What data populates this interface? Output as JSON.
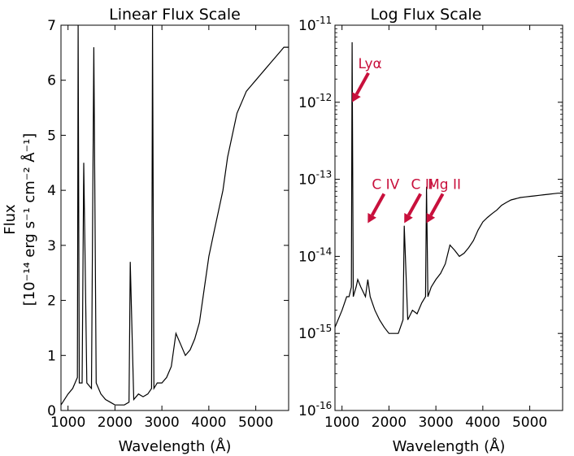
{
  "colors": {
    "line": "#000000",
    "annotation": "#c8103c",
    "background": "#ffffff"
  },
  "ylabel": {
    "line1": "Flux",
    "line2": "[10⁻¹⁴ erg s⁻¹ cm⁻² Å⁻¹]"
  },
  "chart_data": [
    {
      "type": "line",
      "title": "Linear Flux Scale",
      "xlabel": "Wavelength (Å)",
      "ylabel": "Flux [10^-14 erg s^-1 cm^-2 Å^-1]",
      "xlim": [
        850,
        5700
      ],
      "ylim": [
        0,
        7
      ],
      "yscale": "linear",
      "xticks": [
        1000,
        2000,
        3000,
        4000,
        5000
      ],
      "xtick_labels": [
        "1000",
        "2000",
        "3000",
        "4000",
        "5000"
      ],
      "yticks": [
        0,
        1,
        2,
        3,
        4,
        5,
        6,
        7
      ],
      "ytick_labels": [
        "0",
        "1",
        "2",
        "3",
        "4",
        "5",
        "6",
        "7"
      ],
      "series": [
        {
          "name": "spectrum",
          "x": [
            850,
            1000,
            1100,
            1150,
            1200,
            1216,
            1240,
            1300,
            1335,
            1400,
            1500,
            1550,
            1600,
            1700,
            1800,
            1900,
            2000,
            2100,
            2200,
            2300,
            2326,
            2400,
            2500,
            2600,
            2700,
            2780,
            2800,
            2830,
            2900,
            3000,
            3100,
            3200,
            3300,
            3400,
            3500,
            3600,
            3700,
            3800,
            3900,
            4000,
            4100,
            4200,
            4300,
            4400,
            4500,
            4600,
            4700,
            4800,
            4900,
            5000,
            5100,
            5200,
            5300,
            5400,
            5500,
            5600,
            5700
          ],
          "y": [
            0.1,
            0.3,
            0.4,
            0.5,
            0.6,
            7.0,
            0.5,
            0.5,
            4.5,
            0.5,
            0.4,
            6.6,
            0.5,
            0.3,
            0.2,
            0.15,
            0.1,
            0.1,
            0.1,
            0.15,
            2.7,
            0.2,
            0.3,
            0.25,
            0.3,
            0.4,
            7.0,
            0.4,
            0.5,
            0.5,
            0.6,
            0.8,
            1.4,
            1.2,
            1.0,
            1.1,
            1.3,
            1.6,
            2.2,
            2.8,
            3.2,
            3.6,
            4.0,
            4.6,
            5.0,
            5.4,
            5.6,
            5.8,
            5.9,
            6.0,
            6.1,
            6.2,
            6.3,
            6.4,
            6.5,
            6.6,
            6.6
          ]
        }
      ]
    },
    {
      "type": "line",
      "title": "Log Flux Scale",
      "xlabel": "Wavelength (Å)",
      "xlim": [
        850,
        5700
      ],
      "ylim": [
        1e-16,
        1e-11
      ],
      "yscale": "log",
      "xticks": [
        1000,
        2000,
        3000,
        4000,
        5000
      ],
      "xtick_labels": [
        "1000",
        "2000",
        "3000",
        "4000",
        "5000"
      ],
      "yticks": [
        1e-16,
        1e-15,
        1e-14,
        1e-13,
        1e-12,
        1e-11
      ],
      "ytick_labels": [
        {
          "base": "10",
          "exp": "-16"
        },
        {
          "base": "10",
          "exp": "-15"
        },
        {
          "base": "10",
          "exp": "-14"
        },
        {
          "base": "10",
          "exp": "-13"
        },
        {
          "base": "10",
          "exp": "-12"
        },
        {
          "base": "10",
          "exp": "-11"
        }
      ],
      "annotations": [
        {
          "text": "Lyα",
          "x": 1216,
          "y": 1e-12
        },
        {
          "text": "C IV",
          "x": 1549,
          "y": 2.7e-14
        },
        {
          "text": "C II",
          "x": 2326,
          "y": 2.7e-14
        },
        {
          "text": "Mg II",
          "x": 2800,
          "y": 2.7e-14
        }
      ],
      "series": [
        {
          "name": "spectrum",
          "x": [
            850,
            1000,
            1100,
            1150,
            1200,
            1216,
            1240,
            1300,
            1335,
            1400,
            1500,
            1550,
            1600,
            1700,
            1800,
            1900,
            2000,
            2100,
            2200,
            2300,
            2326,
            2400,
            2500,
            2600,
            2700,
            2780,
            2800,
            2830,
            2900,
            3000,
            3100,
            3200,
            3300,
            3400,
            3500,
            3600,
            3700,
            3800,
            3900,
            4000,
            4100,
            4200,
            4300,
            4400,
            4500,
            4600,
            4700,
            4800,
            4900,
            5000,
            5100,
            5200,
            5300,
            5400,
            5500,
            5600,
            5700
          ],
          "y": [
            1.2e-15,
            2e-15,
            3e-15,
            3e-15,
            4e-15,
            6e-12,
            3e-15,
            4e-15,
            5e-15,
            4e-15,
            3e-15,
            5e-15,
            3e-15,
            2e-15,
            1.5e-15,
            1.2e-15,
            1e-15,
            1e-15,
            1e-15,
            1.5e-15,
            2.5e-14,
            1.5e-15,
            2e-15,
            1.8e-15,
            2.5e-15,
            3e-15,
            8e-14,
            3e-15,
            4e-15,
            5e-15,
            6e-15,
            8e-15,
            1.4e-14,
            1.2e-14,
            1e-14,
            1.1e-14,
            1.3e-14,
            1.6e-14,
            2.2e-14,
            2.8e-14,
            3.2e-14,
            3.6e-14,
            4e-14,
            4.6e-14,
            5e-14,
            5.4e-14,
            5.6e-14,
            5.8e-14,
            5.9e-14,
            6e-14,
            6.1e-14,
            6.2e-14,
            6.3e-14,
            6.4e-14,
            6.5e-14,
            6.6e-14,
            6.6e-14
          ]
        }
      ]
    }
  ]
}
